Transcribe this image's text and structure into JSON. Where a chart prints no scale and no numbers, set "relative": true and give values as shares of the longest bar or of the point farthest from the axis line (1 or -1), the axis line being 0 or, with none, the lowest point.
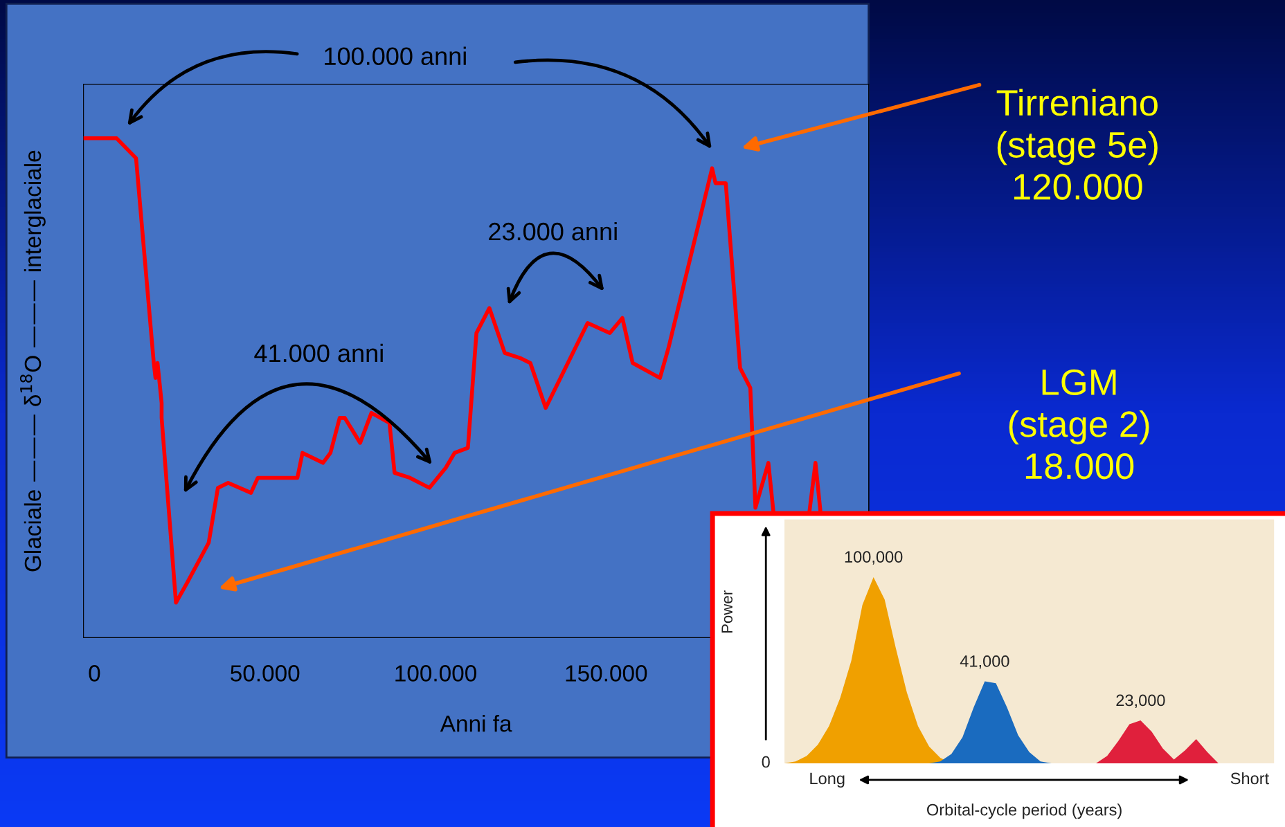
{
  "chart_data": [
    {
      "type": "line",
      "xlabel": "Anni fa",
      "ylabel": "Glaciale ——— δ$^{18}$O ——— interglaciale",
      "relative": true,
      "grid": false,
      "xlim": [
        -3200,
        227000
      ],
      "xticks": [
        {
          "value": 0,
          "label": "0"
        },
        {
          "value": 50000,
          "label": "50.000"
        },
        {
          "value": 100000,
          "label": "100.000"
        },
        {
          "value": 150000,
          "label": "150.000"
        }
      ],
      "series": [
        {
          "color": "#ff0000",
          "x": [
            -3200,
            6500,
            12200,
            17400,
            17900,
            18500,
            19700,
            19700,
            23900,
            27200,
            33500,
            36200,
            39200,
            45900,
            47900,
            53500,
            59500,
            61000,
            67000,
            69200,
            71900,
            73400,
            77900,
            81200,
            86500,
            88000,
            92500,
            98200,
            103000,
            105600,
            109500,
            112000,
            115800,
            120300,
            124800,
            127800,
            132300,
            144600,
            151100,
            154800,
            157800,
            165800,
            168300,
            181100,
            182100,
            185100,
            189300,
            192300,
            193800,
            197600,
            199100,
            204000,
            209600,
            211400,
            212900
          ],
          "values": [
            1.0,
            1.0,
            0.96,
            0.55,
            0.52,
            0.55,
            0.47,
            0.44,
            0.07,
            0.11,
            0.19,
            0.3,
            0.31,
            0.29,
            0.32,
            0.32,
            0.32,
            0.37,
            0.35,
            0.37,
            0.44,
            0.44,
            0.39,
            0.45,
            0.43,
            0.33,
            0.32,
            0.3,
            0.34,
            0.37,
            0.38,
            0.61,
            0.66,
            0.57,
            0.56,
            0.55,
            0.46,
            0.63,
            0.61,
            0.64,
            0.55,
            0.52,
            0.58,
            0.94,
            0.91,
            0.91,
            0.54,
            0.5,
            0.26,
            0.35,
            0.25,
            null,
            0.25,
            0.35,
            0.25
          ]
        }
      ],
      "annotations": [
        "100.000 anni",
        "23.000 anni",
        "41.000 anni",
        "Tirreniano\n(stage 5e)\n120.000",
        "LGM\n(stage 2)\n18.000"
      ]
    },
    {
      "type": "area",
      "xlabel": "Orbital-cycle period (years)",
      "ylabel": "Power",
      "relative": true,
      "grid": false,
      "categories": [
        null,
        null,
        null,
        null,
        null,
        null,
        null,
        null,
        null,
        null,
        null,
        null,
        null,
        null,
        null,
        null,
        null,
        null,
        null,
        null,
        null,
        null,
        null,
        null,
        null,
        null,
        null,
        null,
        null,
        null,
        null,
        null,
        null,
        null,
        null,
        null,
        null,
        null,
        null,
        null,
        null,
        null,
        null,
        null,
        null
      ],
      "series": [
        {
          "color": "#f0a000",
          "values": [
            0,
            0.01,
            0.04,
            0.1,
            0.2,
            0.35,
            0.55,
            0.85,
            1.0,
            0.88,
            0.62,
            0.38,
            0.2,
            0.09,
            0.03,
            0,
            null,
            null,
            null,
            null,
            null,
            null,
            null,
            null,
            null,
            null,
            null,
            null,
            null,
            null,
            null,
            null,
            null,
            null,
            null,
            null,
            null,
            null,
            null,
            null,
            null,
            null,
            null,
            null,
            null
          ]
        },
        {
          "color": "#1a6bbf",
          "values": [
            null,
            null,
            null,
            null,
            null,
            null,
            null,
            null,
            null,
            null,
            null,
            null,
            null,
            0,
            0.01,
            0.05,
            0.14,
            0.3,
            0.44,
            0.43,
            0.3,
            0.15,
            0.06,
            0.01,
            0,
            null,
            null,
            null,
            null,
            null,
            null,
            null,
            null,
            null,
            null,
            null,
            null,
            null,
            null,
            null,
            null,
            null,
            null,
            null,
            null
          ]
        },
        {
          "color": "#e0203c",
          "values": [
            null,
            null,
            null,
            null,
            null,
            null,
            null,
            null,
            null,
            null,
            null,
            null,
            null,
            null,
            null,
            null,
            null,
            null,
            null,
            null,
            null,
            null,
            null,
            null,
            null,
            null,
            null,
            null,
            0,
            0.04,
            0.12,
            0.21,
            0.23,
            0.17,
            0.08,
            0.02,
            0.07,
            0.13,
            0.06,
            0,
            null,
            null,
            null,
            null,
            null
          ]
        }
      ],
      "annotations": [
        "100,000",
        "41,000",
        "23,000",
        "0",
        "Long",
        "Short"
      ]
    }
  ]
}
